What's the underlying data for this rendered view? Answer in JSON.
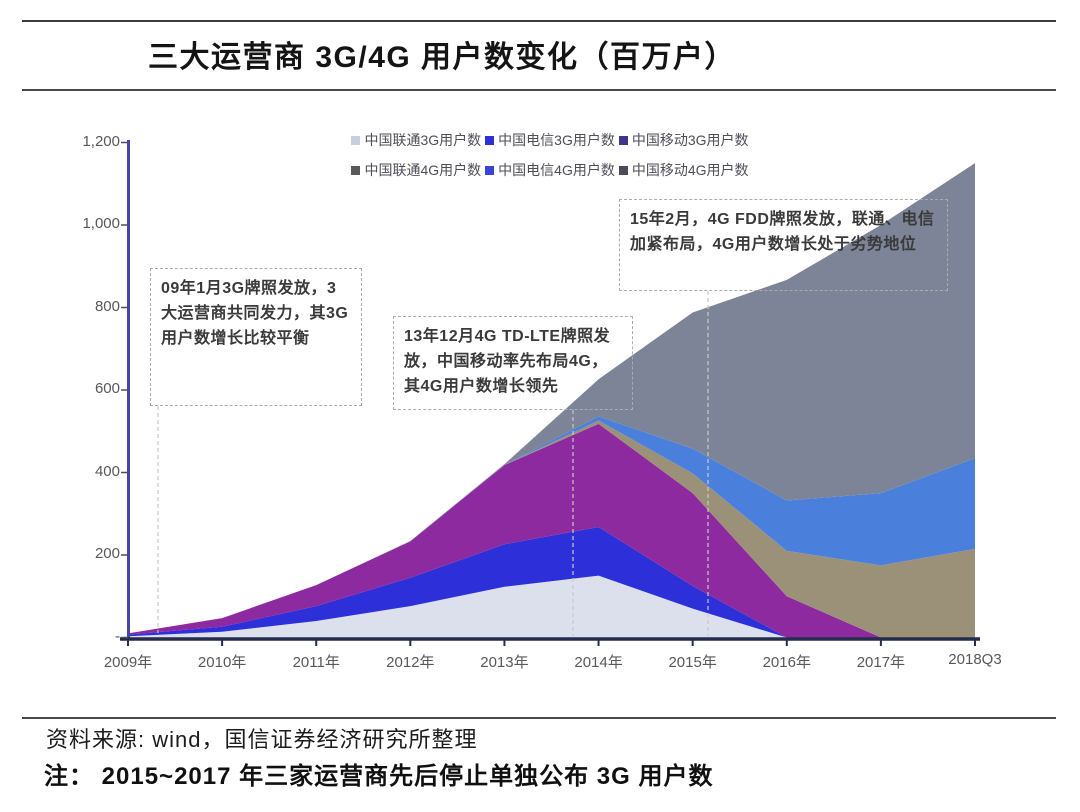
{
  "page": {
    "title": "三大运营商 3G/4G 用户数变化（百万户）"
  },
  "chart_data": {
    "type": "area",
    "stacked": true,
    "title": "三大运营商 3G/4G 用户数变化（百万户）",
    "unit": "百万户",
    "grid": false,
    "legend_position": "top",
    "ylim": [
      0,
      1200
    ],
    "y_ticks": [
      "1,200",
      "1,000",
      "800",
      "600",
      "400",
      "200",
      "-"
    ],
    "categories": [
      "2009年",
      "2010年",
      "2011年",
      "2012年",
      "2013年",
      "2014年",
      "2015年",
      "2016年",
      "2017年",
      "2018Q3"
    ],
    "series": [
      {
        "key": "unicom-3g",
        "name": "中国联通3G用户数",
        "color": "#dbe0ec",
        "legend_color": "#c9cede",
        "values": [
          3,
          14,
          40,
          76,
          123,
          150,
          70,
          0,
          0,
          0
        ]
      },
      {
        "key": "telecom-3g",
        "name": "中国电信3G用户数",
        "color": "#2d2fd8",
        "legend_color": "#2d2fd8",
        "values": [
          4,
          12,
          36,
          69,
          103,
          118,
          55,
          0,
          0,
          0
        ]
      },
      {
        "key": "mobile-3g",
        "name": "中国移动3G用户数",
        "color": "#8e2a9f",
        "legend_color": "#3e3688",
        "values": [
          3,
          21,
          51,
          88,
          192,
          250,
          225,
          100,
          0,
          0
        ]
      },
      {
        "key": "unicom-4g",
        "name": "中国联通4G用户数",
        "color": "#9b9179",
        "legend_color": "#595959",
        "values": [
          0,
          0,
          0,
          0,
          0,
          8,
          48,
          110,
          175,
          215
        ]
      },
      {
        "key": "telecom-4g",
        "name": "中国电信4G用户数",
        "color": "#4a80db",
        "legend_color": "#3a44d6",
        "values": [
          0,
          0,
          0,
          0,
          0,
          10,
          60,
          122,
          175,
          220
        ]
      },
      {
        "key": "mobile-4g",
        "name": "中国移动4G用户数",
        "color": "#7d8498",
        "legend_color": "#4c4c58",
        "values": [
          0,
          0,
          0,
          1,
          2,
          90,
          330,
          535,
          650,
          715
        ]
      }
    ]
  },
  "annotations": [
    {
      "text": "09年1月3G牌照发放，3大运营商共同发力，其3G用户数增长比较平衡"
    },
    {
      "text": "13年12月4G TD-LTE牌照发放，中国移动率先布局4G，其4G用户数增长领先"
    },
    {
      "text": "15年2月，4G FDD牌照发放，联通、电信加紧布局，4G用户数增长处于劣势地位"
    }
  ],
  "footer": {
    "source": "资料来源: wind，国信证券经济研究所整理",
    "note": "注： 2015~2017 年三家运营商先后停止单独公布 3G 用户数"
  }
}
